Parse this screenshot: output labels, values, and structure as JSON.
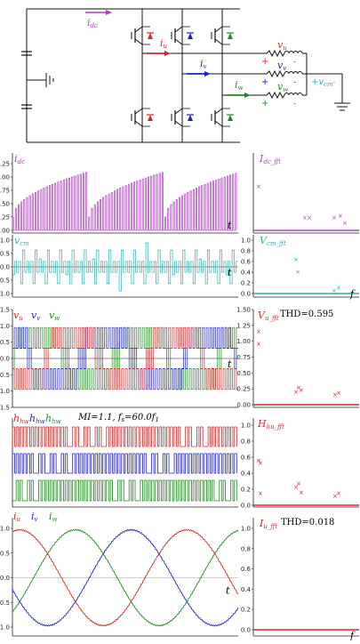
{
  "colors": {
    "u": "#d62728",
    "v": "#1f1fc8",
    "w": "#1f8a1f",
    "dc": "#b040c0",
    "cm": "#2ab0b0",
    "black": "#111111"
  },
  "circuit": {
    "i_dc": "i",
    "i_dc_sub": "dc",
    "i_u": "i",
    "i_u_sub": "u",
    "i_v": "i",
    "i_v_sub": "v",
    "i_w": "i",
    "i_w_sub": "w",
    "v_u": "v",
    "v_u_sub": "u",
    "v_v": "v",
    "v_v_sub": "v",
    "v_w": "v",
    "v_w_sub": "w",
    "v_cm": "v",
    "v_cm_sub": "cm",
    "plus": "+",
    "minus": "-"
  },
  "panels": [
    {
      "id": "idc",
      "labels": [
        {
          "text": "i",
          "sub": "dc",
          "color": "dc"
        }
      ],
      "yticks": [
        "1.25",
        "1.00",
        "0.75",
        "0.50",
        "0.25",
        "0.00"
      ],
      "xlabel": "t",
      "fft_label": {
        "text": "I",
        "sub": "dc_fft",
        "color": "dc"
      },
      "fft_yticks": [],
      "fft_xlabel": "f"
    },
    {
      "id": "vcm",
      "labels": [
        {
          "text": "v",
          "sub": "cm",
          "color": "cm"
        }
      ],
      "yticks": [
        "1.0",
        "0.5",
        "0.0",
        "-0.5",
        "-1.0"
      ],
      "xlabel": "t",
      "fft_label": {
        "text": "V",
        "sub": "cm_fft",
        "color": "cm"
      },
      "fft_yticks": [
        "1.0",
        "0.8",
        "0.6",
        "0.4",
        "0.2",
        "0.0"
      ],
      "fft_xlabel": "f"
    },
    {
      "id": "vuvw",
      "labels": [
        {
          "text": "v",
          "sub": "u",
          "color": "u"
        },
        {
          "text": "v",
          "sub": "v",
          "color": "v"
        },
        {
          "text": "v",
          "sub": "w",
          "color": "w"
        }
      ],
      "yticks": [
        "1.5",
        "1.0",
        "0.5",
        "0.0",
        "-0.5",
        "-1.0",
        "-1.5"
      ],
      "xlabel": "t",
      "fft_label": {
        "text": "V",
        "sub": "u_fft",
        "color": "u"
      },
      "fft_extra": "THD=0.595",
      "fft_yticks": [
        "1.50",
        "1.25",
        "1.00",
        "0.75",
        "0.50",
        "0.25",
        "0.00"
      ],
      "fft_xlabel": "f"
    },
    {
      "id": "hhw",
      "labels": [
        {
          "text": "h",
          "sub": "hw",
          "color": "u"
        },
        {
          "text": "h",
          "sub": "hw",
          "color": "v"
        },
        {
          "text": "h",
          "sub": "hw",
          "color": "w"
        }
      ],
      "extra": "MI=1.1, f",
      "extra_sub": "s",
      "extra_tail": "=60.0f",
      "extra_tail_sub": "1",
      "yticks": [],
      "xlabel": "",
      "fft_label": {
        "text": "H",
        "sub": "hu_fft",
        "color": "u"
      },
      "fft_yticks": [
        "1.0",
        "0.8",
        "0.6",
        "0.4",
        "0.2",
        "0.0"
      ],
      "fft_xlabel": "f"
    },
    {
      "id": "iuvw",
      "labels": [
        {
          "text": "i",
          "sub": "u",
          "color": "u"
        },
        {
          "text": "i",
          "sub": "v",
          "color": "v"
        },
        {
          "text": "i",
          "sub": "w",
          "color": "w"
        }
      ],
      "yticks": [
        "1.0",
        "0.5",
        "0.0",
        "-0.5",
        "-1.0"
      ],
      "xlabel": "t",
      "fft_label": {
        "text": "I",
        "sub": "u_fft",
        "color": "u"
      },
      "fft_extra": "THD=0.018",
      "fft_yticks": [
        "1.0",
        "0.8",
        "0.6",
        "0.4",
        "0.2",
        "0.0"
      ],
      "fft_xlabel": "f"
    }
  ]
}
